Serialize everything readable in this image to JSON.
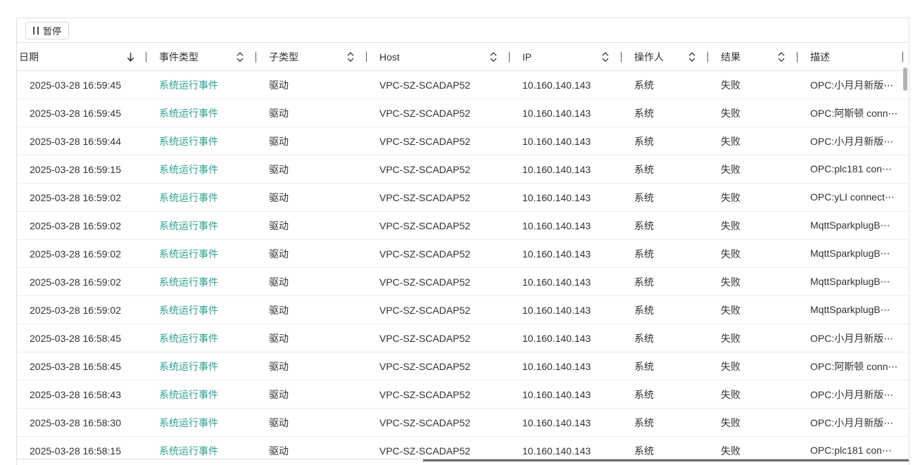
{
  "toolbar": {
    "pause_label": "暂停"
  },
  "table": {
    "columns": [
      {
        "key": "date",
        "label": "日期",
        "sort": "desc"
      },
      {
        "key": "event_type",
        "label": "事件类型",
        "sort": "both"
      },
      {
        "key": "sub_type",
        "label": "子类型",
        "sort": "both"
      },
      {
        "key": "host",
        "label": "Host",
        "sort": "both"
      },
      {
        "key": "ip",
        "label": "IP",
        "sort": "both"
      },
      {
        "key": "operator",
        "label": "操作人",
        "sort": "both"
      },
      {
        "key": "result",
        "label": "结果",
        "sort": "both"
      },
      {
        "key": "description",
        "label": "描述",
        "sort": "none"
      }
    ],
    "rows": [
      {
        "date": "2025-03-28 16:59:45",
        "event_type": "系统运行事件",
        "sub_type": "驱动",
        "host": "VPC-SZ-SCADAP52",
        "ip": "10.160.140.143",
        "operator": "系统",
        "result": "失败",
        "description": "OPC:小月月新版⋯"
      },
      {
        "date": "2025-03-28 16:59:45",
        "event_type": "系统运行事件",
        "sub_type": "驱动",
        "host": "VPC-SZ-SCADAP52",
        "ip": "10.160.140.143",
        "operator": "系统",
        "result": "失败",
        "description": "OPC:阿斯顿 conn⋯"
      },
      {
        "date": "2025-03-28 16:59:44",
        "event_type": "系统运行事件",
        "sub_type": "驱动",
        "host": "VPC-SZ-SCADAP52",
        "ip": "10.160.140.143",
        "operator": "系统",
        "result": "失败",
        "description": "OPC:小月月新版⋯"
      },
      {
        "date": "2025-03-28 16:59:15",
        "event_type": "系统运行事件",
        "sub_type": "驱动",
        "host": "VPC-SZ-SCADAP52",
        "ip": "10.160.140.143",
        "operator": "系统",
        "result": "失败",
        "description": "OPC:plc181 con⋯"
      },
      {
        "date": "2025-03-28 16:59:02",
        "event_type": "系统运行事件",
        "sub_type": "驱动",
        "host": "VPC-SZ-SCADAP52",
        "ip": "10.160.140.143",
        "operator": "系统",
        "result": "失败",
        "description": "OPC:yLI connect⋯"
      },
      {
        "date": "2025-03-28 16:59:02",
        "event_type": "系统运行事件",
        "sub_type": "驱动",
        "host": "VPC-SZ-SCADAP52",
        "ip": "10.160.140.143",
        "operator": "系统",
        "result": "失败",
        "description": "MqttSparkplugB⋯"
      },
      {
        "date": "2025-03-28 16:59:02",
        "event_type": "系统运行事件",
        "sub_type": "驱动",
        "host": "VPC-SZ-SCADAP52",
        "ip": "10.160.140.143",
        "operator": "系统",
        "result": "失败",
        "description": "MqttSparkplugB⋯"
      },
      {
        "date": "2025-03-28 16:59:02",
        "event_type": "系统运行事件",
        "sub_type": "驱动",
        "host": "VPC-SZ-SCADAP52",
        "ip": "10.160.140.143",
        "operator": "系统",
        "result": "失败",
        "description": "MqttSparkplugB⋯"
      },
      {
        "date": "2025-03-28 16:59:02",
        "event_type": "系统运行事件",
        "sub_type": "驱动",
        "host": "VPC-SZ-SCADAP52",
        "ip": "10.160.140.143",
        "operator": "系统",
        "result": "失败",
        "description": "MqttSparkplugB⋯"
      },
      {
        "date": "2025-03-28 16:58:45",
        "event_type": "系统运行事件",
        "sub_type": "驱动",
        "host": "VPC-SZ-SCADAP52",
        "ip": "10.160.140.143",
        "operator": "系统",
        "result": "失败",
        "description": "OPC:小月月新版⋯"
      },
      {
        "date": "2025-03-28 16:58:45",
        "event_type": "系统运行事件",
        "sub_type": "驱动",
        "host": "VPC-SZ-SCADAP52",
        "ip": "10.160.140.143",
        "operator": "系统",
        "result": "失败",
        "description": "OPC:阿斯顿 conn⋯"
      },
      {
        "date": "2025-03-28 16:58:43",
        "event_type": "系统运行事件",
        "sub_type": "驱动",
        "host": "VPC-SZ-SCADAP52",
        "ip": "10.160.140.143",
        "operator": "系统",
        "result": "失败",
        "description": "OPC:小月月新版⋯"
      },
      {
        "date": "2025-03-28 16:58:30",
        "event_type": "系统运行事件",
        "sub_type": "驱动",
        "host": "VPC-SZ-SCADAP52",
        "ip": "10.160.140.143",
        "operator": "系统",
        "result": "失败",
        "description": "OPC:小月月新版⋯"
      },
      {
        "date": "2025-03-28 16:58:15",
        "event_type": "系统运行事件",
        "sub_type": "驱动",
        "host": "VPC-SZ-SCADAP52",
        "ip": "10.160.140.143",
        "operator": "系统",
        "result": "失败",
        "description": "OPC:plc181 con⋯"
      }
    ]
  },
  "colors": {
    "event_type_text": "#2da191",
    "body_text": "#303133",
    "container_border": "#e0e0e0",
    "row_divider": "#ebebeb",
    "scrollbar_thumb": "#b3b3b3"
  }
}
